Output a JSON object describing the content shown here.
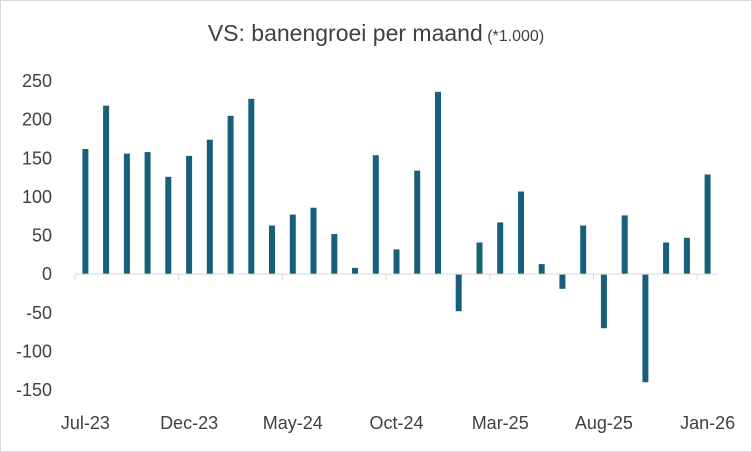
{
  "chart_data": {
    "type": "bar",
    "title": "VS: banengroei per maand",
    "subtitle": "(*1.000)",
    "xlabel": "",
    "ylabel": "",
    "ylim": [
      -150,
      250
    ],
    "y_ticks": [
      250,
      200,
      150,
      100,
      50,
      0,
      -50,
      -100,
      -150
    ],
    "x_tick_labels": [
      "Jul-23",
      "Dec-23",
      "May-24",
      "Oct-24",
      "Mar-25",
      "Aug-25",
      "Jan-26"
    ],
    "categories": [
      "Jul-23",
      "Aug-23",
      "Sep-23",
      "Oct-23",
      "Nov-23",
      "Dec-23",
      "Jan-24",
      "Feb-24",
      "Mar-24",
      "Apr-24",
      "May-24",
      "Jun-24",
      "Jul-24",
      "Aug-24",
      "Sep-24",
      "Oct-24",
      "Nov-24",
      "Dec-24",
      "Jan-25",
      "Feb-25",
      "Mar-25",
      "Apr-25",
      "May-25",
      "Jun-25",
      "Jul-25",
      "Aug-25",
      "Sep-25",
      "Oct-25",
      "Nov-25",
      "Dec-25",
      "Jan-26"
    ],
    "values": [
      162,
      218,
      156,
      158,
      126,
      153,
      174,
      205,
      227,
      63,
      77,
      86,
      52,
      8,
      154,
      32,
      134,
      236,
      -48,
      41,
      67,
      107,
      13,
      -19,
      63,
      -70,
      76,
      -140,
      41,
      47,
      129
    ],
    "grid": false,
    "legend": "none",
    "bar_color": "#1a5f7a"
  }
}
